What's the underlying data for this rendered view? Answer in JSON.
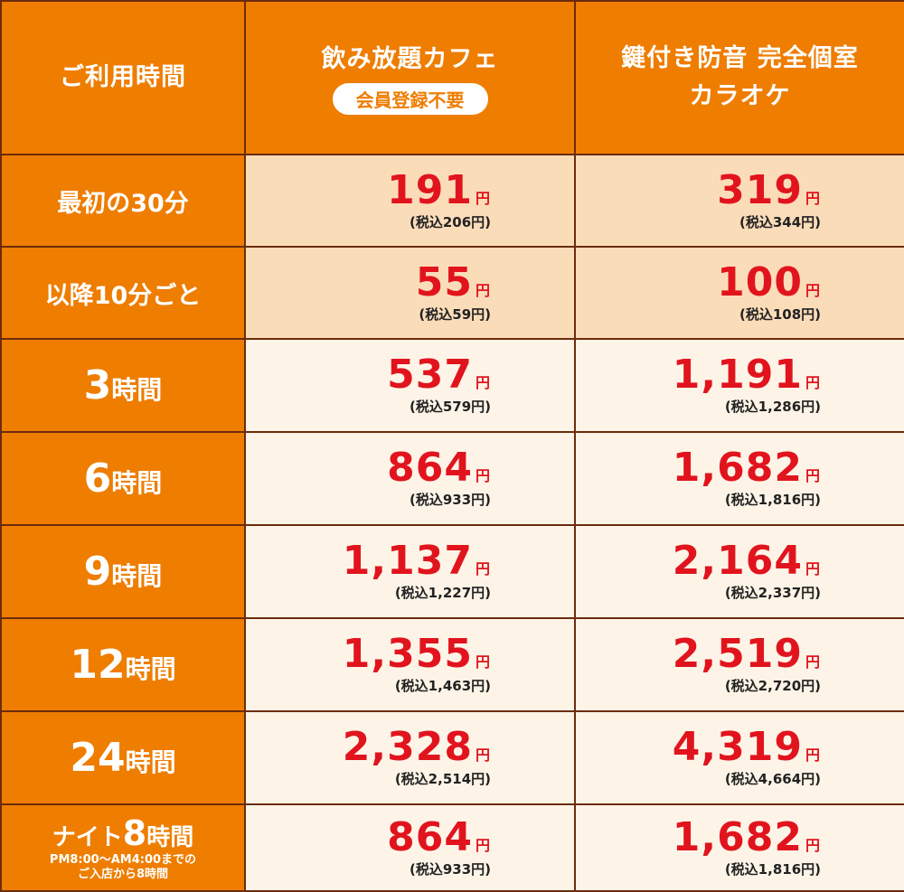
{
  "header": {
    "usage_time": "ご利用時間",
    "cafe_title": "飲み放題カフェ",
    "cafe_badge": "会員登録不要",
    "karaoke_title_1": "鍵付き防音 完全個室",
    "karaoke_title_2": "カラオケ"
  },
  "yen": "円",
  "rows": [
    {
      "label": "最初の30分",
      "cafe": "191",
      "cafe_tax": "(税込206円)",
      "karaoke": "319",
      "karaoke_tax": "(税込344円)"
    },
    {
      "label": "以降10分ごと",
      "cafe": "55",
      "cafe_tax": "(税込59円)",
      "karaoke": "100",
      "karaoke_tax": "(税込108円)"
    },
    {
      "num": "3",
      "unit": "時間",
      "cafe": "537",
      "cafe_tax": "(税込579円)",
      "karaoke": "1,191",
      "karaoke_tax": "(税込1,286円)"
    },
    {
      "num": "6",
      "unit": "時間",
      "cafe": "864",
      "cafe_tax": "(税込933円)",
      "karaoke": "1,682",
      "karaoke_tax": "(税込1,816円)"
    },
    {
      "num": "9",
      "unit": "時間",
      "cafe": "1,137",
      "cafe_tax": "(税込1,227円)",
      "karaoke": "2,164",
      "karaoke_tax": "(税込2,337円)"
    },
    {
      "num": "12",
      "unit": "時間",
      "cafe": "1,355",
      "cafe_tax": "(税込1,463円)",
      "karaoke": "2,519",
      "karaoke_tax": "(税込2,720円)"
    },
    {
      "num": "24",
      "unit": "時間",
      "cafe": "2,328",
      "cafe_tax": "(税込2,514円)",
      "karaoke": "4,319",
      "karaoke_tax": "(税込4,664円)"
    },
    {
      "pre": "ナイト",
      "num": "8",
      "unit": "時間",
      "note_1": "PM8:00～AM4:00までの",
      "note_2": "ご入店から8時間",
      "cafe": "864",
      "cafe_tax": "(税込933円)",
      "karaoke": "1,682",
      "karaoke_tax": "(税込1,816円)"
    }
  ],
  "colors": {
    "orange": "#ee7d00",
    "first_rows_bg": "#fbdcb9",
    "rest_rows_bg": "#fdf4e7",
    "price_red": "#e1141e",
    "border": "#6b2c0c"
  }
}
